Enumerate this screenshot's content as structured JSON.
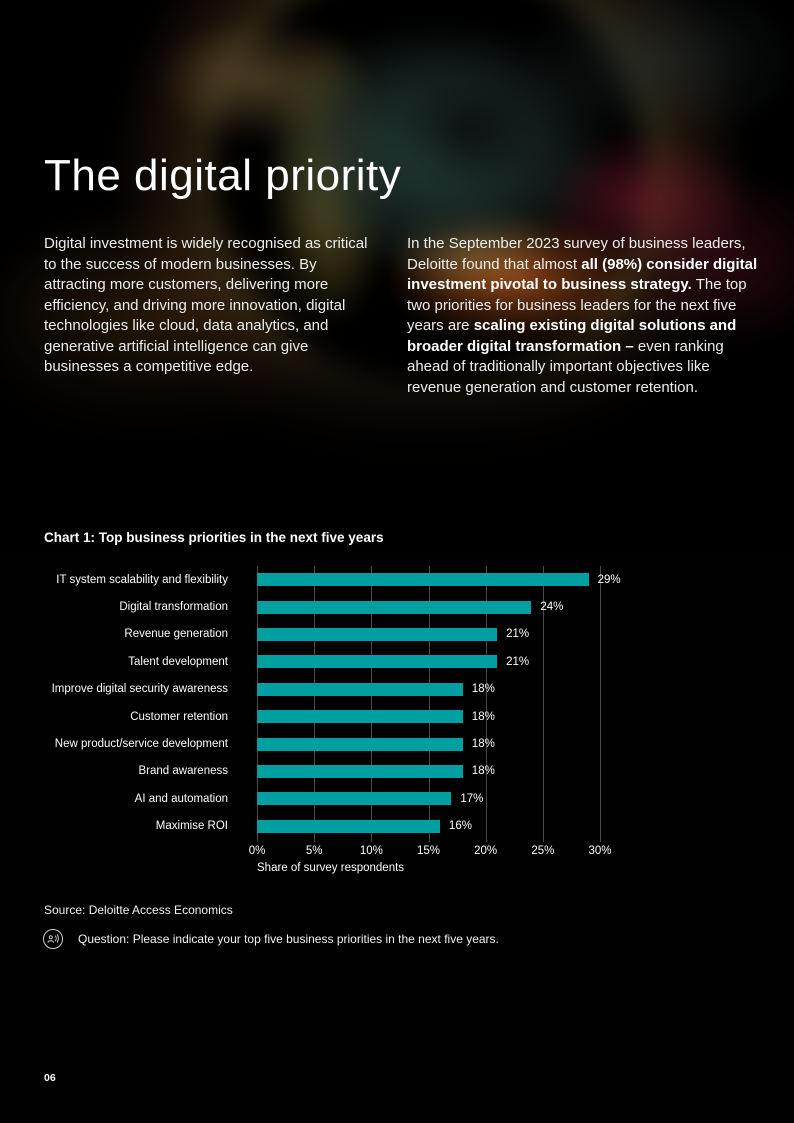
{
  "header": {
    "title": "The digital priority"
  },
  "intro": {
    "left_paragraph": "Digital investment is widely recognised as critical to the success of modern businesses. By attracting more customers, delivering more efficiency, and driving more innovation, digital technologies like cloud, data analytics, and generative artificial intelligence can give businesses a competitive edge.",
    "right_segments": [
      {
        "text": "In the September 2023 survey of business leaders, Deloitte found that almost ",
        "bold": false
      },
      {
        "text": "all (98%) consider digital investment pivotal to business strategy.",
        "bold": true
      },
      {
        "text": " The top two priorities for business leaders for the next five years are ",
        "bold": false
      },
      {
        "text": "scaling existing digital solutions and broader digital transformation –",
        "bold": true
      },
      {
        "text": " even ranking ahead of traditionally important objectives like revenue generation and customer retention.",
        "bold": false
      }
    ]
  },
  "chart_data": {
    "type": "bar",
    "orientation": "horizontal",
    "title": "Chart 1: Top business priorities in the next five years",
    "categories": [
      "IT system scalability and flexibility",
      "Digital transformation",
      "Revenue generation",
      "Talent development",
      "Improve digital security awareness",
      "Customer retention",
      "New product/service development",
      "Brand awareness",
      "AI and automation",
      "Maximise ROI"
    ],
    "values": [
      29,
      24,
      21,
      21,
      18,
      18,
      18,
      18,
      17,
      16
    ],
    "value_labels": [
      "29%",
      "24%",
      "21%",
      "21%",
      "18%",
      "18%",
      "18%",
      "18%",
      "17%",
      "16%"
    ],
    "x_ticks": [
      "0%",
      "5%",
      "10%",
      "15%",
      "20%",
      "25%",
      "30%"
    ],
    "xlim": [
      0,
      30
    ],
    "xlabel": "Share of survey respondents",
    "grid": "vertical",
    "bar_color": "#00A0A2",
    "gridline_color": "#4b4b4b"
  },
  "notes": {
    "source": "Source: Deloitte Access Economics",
    "question": "Question: Please indicate your top five business priorities in the next five years.",
    "question_icon": "speaker-person-icon"
  },
  "footer": {
    "page_number": "06"
  }
}
